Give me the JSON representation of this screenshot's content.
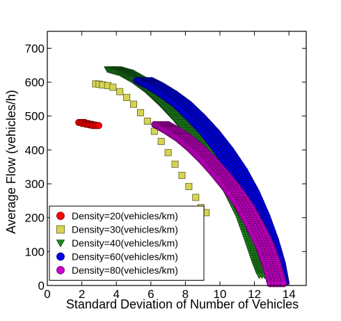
{
  "chart_data": {
    "type": "scatter",
    "title": "",
    "xlabel": "Standard Deviation of Number of Vehicles",
    "ylabel": "Average Flow (vehicles/h)",
    "xlim": [
      0,
      15
    ],
    "ylim": [
      0,
      750
    ],
    "xticks": [
      0,
      2,
      4,
      6,
      8,
      10,
      12,
      14
    ],
    "yticks": [
      0,
      100,
      200,
      300,
      400,
      500,
      600,
      700
    ],
    "grid": false,
    "legend_position": "bottom-left",
    "series": [
      {
        "name": "Density=20(vehicles/km)",
        "color": "#ff0000",
        "marker": "circle",
        "band_halfwidth": 0.18,
        "points": [
          [
            2.0,
            481
          ],
          [
            2.2,
            478
          ],
          [
            2.4,
            476
          ],
          [
            2.6,
            474
          ],
          [
            2.8,
            472
          ]
        ]
      },
      {
        "name": "Density=30(vehicles/km)",
        "color": "#d4d452",
        "marker": "square",
        "band_halfwidth": 0.0,
        "points": [
          [
            2.8,
            595
          ],
          [
            3.0,
            594
          ],
          [
            3.2,
            592
          ],
          [
            3.5,
            590
          ],
          [
            3.8,
            585
          ],
          [
            4.2,
            572
          ],
          [
            4.6,
            555
          ],
          [
            5.0,
            535
          ],
          [
            5.4,
            510
          ],
          [
            5.8,
            485
          ],
          [
            6.2,
            455
          ],
          [
            6.6,
            425
          ],
          [
            7.0,
            392
          ],
          [
            7.4,
            358
          ],
          [
            7.8,
            325
          ],
          [
            8.2,
            292
          ],
          [
            8.6,
            260
          ],
          [
            8.9,
            230
          ],
          [
            9.2,
            215
          ]
        ]
      },
      {
        "name": "Density=40(vehicles/km)",
        "color": "#1f8a1f",
        "marker": "triangle-down",
        "band_halfwidth": 0.32,
        "points": [
          [
            3.8,
            638
          ],
          [
            4.5,
            628
          ],
          [
            5.2,
            608
          ],
          [
            6.0,
            578
          ],
          [
            6.8,
            540
          ],
          [
            7.6,
            497
          ],
          [
            8.4,
            448
          ],
          [
            9.2,
            394
          ],
          [
            10.0,
            334
          ],
          [
            10.7,
            272
          ],
          [
            11.4,
            200
          ],
          [
            11.9,
            130
          ],
          [
            12.3,
            70
          ],
          [
            12.6,
            30
          ]
        ]
      },
      {
        "name": "Density=60(vehicles/km)",
        "color": "#0000ee",
        "marker": "circle",
        "band_halfwidth": 0.42,
        "points": [
          [
            5.6,
            605
          ],
          [
            6.2,
            590
          ],
          [
            7.0,
            565
          ],
          [
            7.8,
            535
          ],
          [
            8.6,
            496
          ],
          [
            9.4,
            452
          ],
          [
            10.2,
            400
          ],
          [
            11.0,
            340
          ],
          [
            11.7,
            275
          ],
          [
            12.3,
            205
          ],
          [
            12.8,
            135
          ],
          [
            13.2,
            65
          ],
          [
            13.4,
            10
          ]
        ]
      },
      {
        "name": "Density=80(vehicles/km)",
        "color": "#cc00cc",
        "marker": "circle",
        "band_halfwidth": 0.38,
        "points": [
          [
            6.6,
            475
          ],
          [
            7.2,
            458
          ],
          [
            7.9,
            435
          ],
          [
            8.6,
            405
          ],
          [
            9.3,
            370
          ],
          [
            10.0,
            330
          ],
          [
            10.7,
            286
          ],
          [
            11.4,
            235
          ],
          [
            12.0,
            180
          ],
          [
            12.6,
            118
          ],
          [
            13.0,
            62
          ],
          [
            13.3,
            5
          ]
        ]
      }
    ]
  }
}
